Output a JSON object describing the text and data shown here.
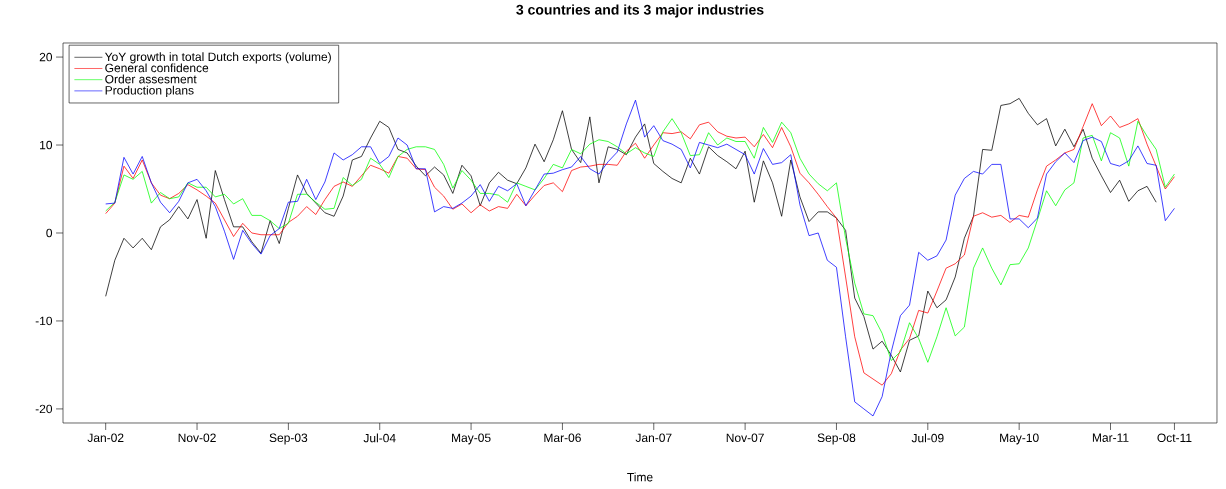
{
  "chart_data": {
    "type": "line",
    "title": "3 countries and its 3 major industries",
    "xlabel": "Time",
    "x": [
      "2002-01",
      "2002-02",
      "2002-03",
      "2002-04",
      "2002-05",
      "2002-06",
      "2002-07",
      "2002-08",
      "2002-09",
      "2002-10",
      "2002-11",
      "2002-12",
      "2003-01",
      "2003-02",
      "2003-03",
      "2003-04",
      "2003-05",
      "2003-06",
      "2003-07",
      "2003-08",
      "2003-09",
      "2003-10",
      "2003-11",
      "2003-12",
      "2004-01",
      "2004-02",
      "2004-03",
      "2004-04",
      "2004-05",
      "2004-06",
      "2004-07",
      "2004-08",
      "2004-09",
      "2004-10",
      "2004-11",
      "2004-12",
      "2005-01",
      "2005-02",
      "2005-03",
      "2005-04",
      "2005-05",
      "2005-06",
      "2005-07",
      "2005-08",
      "2005-09",
      "2005-10",
      "2005-11",
      "2005-12",
      "2006-01",
      "2006-02",
      "2006-03",
      "2006-04",
      "2006-05",
      "2006-06",
      "2006-07",
      "2006-08",
      "2006-09",
      "2006-10",
      "2006-11",
      "2006-12",
      "2007-01",
      "2007-02",
      "2007-03",
      "2007-04",
      "2007-05",
      "2007-06",
      "2007-07",
      "2007-08",
      "2007-09",
      "2007-10",
      "2007-11",
      "2007-12",
      "2008-01",
      "2008-02",
      "2008-03",
      "2008-04",
      "2008-05",
      "2008-06",
      "2008-07",
      "2008-08",
      "2008-09",
      "2008-10",
      "2008-11",
      "2008-12",
      "2009-01",
      "2009-02",
      "2009-03",
      "2009-04",
      "2009-05",
      "2009-06",
      "2009-07",
      "2009-08",
      "2009-09",
      "2009-10",
      "2009-11",
      "2009-12",
      "2010-01",
      "2010-02",
      "2010-03",
      "2010-04",
      "2010-05",
      "2010-06",
      "2010-07",
      "2010-08",
      "2010-09",
      "2010-10",
      "2010-11",
      "2010-12",
      "2011-01",
      "2011-02",
      "2011-03",
      "2011-04",
      "2011-05",
      "2011-06",
      "2011-07",
      "2011-08",
      "2011-09",
      "2011-10"
    ],
    "series": [
      {
        "name": "YoY growth in total Dutch exports (volume)",
        "color": "#000000",
        "values": [
          -7.2,
          -3.1,
          -0.6,
          -1.7,
          -0.6,
          -1.9,
          0.7,
          1.5,
          3.0,
          1.6,
          3.8,
          -0.6,
          7.1,
          3.8,
          0.7,
          0.7,
          -1.0,
          -2.3,
          1.4,
          -1.2,
          2.8,
          6.6,
          4.5,
          3.4,
          2.3,
          1.9,
          4.2,
          8.3,
          8.7,
          10.8,
          12.7,
          12.0,
          9.5,
          9.1,
          7.6,
          6.5,
          7.5,
          6.6,
          4.5,
          7.7,
          6.5,
          3.1,
          5.7,
          6.9,
          6.0,
          5.6,
          7.4,
          10.1,
          8.1,
          10.6,
          13.9,
          9.5,
          8.0,
          13.2,
          5.7,
          9.8,
          9.5,
          8.9,
          10.9,
          12.4,
          7.9,
          7.0,
          6.2,
          5.7,
          8.5,
          6.7,
          9.8,
          8.8,
          8.1,
          7.3,
          9.3,
          3.5,
          8.2,
          5.7,
          1.9,
          8.3,
          4.1,
          1.3,
          2.4,
          2.4,
          1.7,
          0.3,
          -7.4,
          -9.5,
          -13.2,
          -12.3,
          -13.9,
          -15.8,
          -12.2,
          -11.7,
          -6.6,
          -8.5,
          -7.6,
          -5.0,
          -0.6,
          1.9,
          9.5,
          9.4,
          14.5,
          14.7,
          15.3,
          13.6,
          12.3,
          13.0,
          9.9,
          11.8,
          9.8,
          11.8,
          8.5,
          6.5,
          4.6,
          6.0,
          3.6,
          4.8,
          5.3,
          3.5,
          null,
          null
        ]
      },
      {
        "name": "General confidence",
        "color": "#ff0000",
        "values": [
          2.2,
          3.4,
          7.6,
          6.2,
          8.3,
          5.7,
          4.3,
          3.9,
          4.5,
          5.5,
          4.9,
          4.2,
          3.4,
          1.5,
          -0.4,
          1.1,
          0,
          -0.2,
          -0.2,
          -0.2,
          1.2,
          1.9,
          3.0,
          2.1,
          3.8,
          5.3,
          5.8,
          5.3,
          6.5,
          7.7,
          7.3,
          6.8,
          8.7,
          8.5,
          7.3,
          7.2,
          5.2,
          4.2,
          2.7,
          3.3,
          2.3,
          3.2,
          2.5,
          3.0,
          2.8,
          4.4,
          3.1,
          4.3,
          5.4,
          5.7,
          4.7,
          7.1,
          7.5,
          7.6,
          7.8,
          7.8,
          7.7,
          9.3,
          10.2,
          8.5,
          10.0,
          11.4,
          11.3,
          11.5,
          10.7,
          12.3,
          12.6,
          11.5,
          11.0,
          10.8,
          10.9,
          9.8,
          11.2,
          9.7,
          12.0,
          9.8,
          6.8,
          5.7,
          4.4,
          3.0,
          1.7,
          -5.0,
          -11.8,
          -15.9,
          -16.6,
          -17.3,
          -16.0,
          -13.3,
          -12.0,
          -8.8,
          -9.1,
          -6.6,
          -4.0,
          -3.5,
          -2.5,
          1.9,
          2.3,
          1.8,
          2.0,
          1.2,
          2.0,
          1.8,
          4.9,
          7.6,
          8.3,
          9.1,
          9.5,
          12.1,
          14.7,
          12.2,
          13.3,
          12.0,
          12.4,
          13.0,
          10.1,
          7.6,
          5.0,
          6.4
        ]
      },
      {
        "name": "Order assesment",
        "color": "#00ff00",
        "values": [
          2.5,
          3.5,
          6.6,
          6.1,
          7.0,
          3.4,
          4.6,
          3.9,
          4.1,
          5.7,
          5.2,
          5.2,
          4.1,
          4.4,
          3.3,
          3.9,
          2.0,
          2.0,
          1.4,
          0.5,
          1.1,
          4.4,
          4.4,
          3.5,
          2.7,
          2.8,
          6.3,
          5.4,
          6.1,
          8.5,
          7.8,
          6.3,
          8.7,
          9.5,
          9.8,
          9.8,
          9.5,
          7.8,
          5.1,
          7.1,
          6.0,
          4.5,
          4.5,
          4.3,
          3.5,
          5.7,
          5.3,
          4.9,
          6.2,
          7.8,
          7.4,
          9.5,
          9.0,
          10.1,
          10.6,
          10.4,
          9.8,
          9.0,
          9.7,
          9.1,
          8.7,
          11.5,
          13.0,
          11.4,
          8.8,
          8.9,
          11.4,
          10.0,
          10.8,
          10.4,
          10.4,
          8.5,
          12.0,
          10.3,
          12.6,
          11.4,
          8.5,
          6.7,
          5.6,
          4.8,
          5.7,
          -0.6,
          -5.7,
          -9.2,
          -9.4,
          -11.4,
          -14.5,
          -13.5,
          -10.2,
          -12.0,
          -14.7,
          -11.8,
          -8.5,
          -11.7,
          -10.7,
          -4.0,
          -1.7,
          -4.0,
          -5.9,
          -3.6,
          -3.5,
          -1.7,
          1.5,
          4.8,
          3.1,
          4.9,
          5.7,
          10.8,
          11.1,
          8.2,
          11.4,
          10.8,
          7.6,
          12.7,
          11.0,
          9.5,
          5.2,
          6.7
        ]
      },
      {
        "name": "Production plans",
        "color": "#0000ff",
        "values": [
          3.3,
          3.4,
          8.6,
          6.7,
          8.7,
          5.7,
          3.5,
          2.3,
          3.6,
          5.7,
          6.1,
          4.8,
          3.0,
          0.2,
          -3.0,
          0.3,
          -1.2,
          -2.4,
          -0.3,
          0.5,
          3.5,
          3.6,
          6.1,
          3.8,
          5.8,
          9.1,
          8.3,
          8.9,
          9.8,
          9.8,
          7.9,
          8.7,
          10.8,
          10.0,
          7.3,
          7.3,
          2.4,
          3.0,
          2.8,
          3.4,
          4.2,
          5.5,
          3.6,
          5.3,
          4.8,
          5.6,
          3.1,
          4.9,
          6.7,
          6.8,
          7.2,
          7.5,
          8.7,
          7.3,
          6.7,
          8.1,
          9.2,
          12.4,
          15.1,
          10.9,
          12.2,
          10.5,
          10.1,
          9.5,
          7.4,
          10.3,
          10.0,
          9.7,
          10.1,
          9.5,
          8.9,
          6.7,
          9.6,
          7.8,
          8.0,
          8.9,
          3.2,
          -0.3,
          0.0,
          -3.1,
          -3.9,
          -11.8,
          -19.2,
          -20.0,
          -20.8,
          -18.6,
          -13.5,
          -9.4,
          -8.2,
          -2.2,
          -3.1,
          -2.6,
          -0.8,
          4.3,
          6.2,
          7.0,
          6.7,
          7.8,
          7.8,
          1.6,
          1.6,
          0.6,
          1.7,
          6.7,
          8.1,
          9.1,
          8.0,
          10.5,
          10.9,
          10.4,
          7.9,
          7.6,
          8.2,
          9.9,
          7.9,
          7.7,
          1.4,
          2.8
        ]
      }
    ],
    "xlim": [
      "2001-08-11",
      "2012-02-21"
    ],
    "xticks": [
      {
        "value": "2002-01",
        "label": "Jan-02"
      },
      {
        "value": "2002-11",
        "label": "Nov-02"
      },
      {
        "value": "2003-09",
        "label": "Sep-03"
      },
      {
        "value": "2004-07",
        "label": "Jul-04"
      },
      {
        "value": "2005-05",
        "label": "May-05"
      },
      {
        "value": "2006-03",
        "label": "Mar-06"
      },
      {
        "value": "2007-01",
        "label": "Jan-07"
      },
      {
        "value": "2007-11",
        "label": "Nov-07"
      },
      {
        "value": "2008-09",
        "label": "Sep-08"
      },
      {
        "value": "2009-07",
        "label": "Jul-09"
      },
      {
        "value": "2010-05",
        "label": "May-10"
      },
      {
        "value": "2011-03",
        "label": "Mar-11"
      },
      {
        "value": "2011-10",
        "label": "Oct-11"
      }
    ],
    "ylim": [
      -21.6,
      21.6
    ],
    "yticks": [
      -20,
      -10,
      0,
      10,
      20
    ],
    "legend": "top left",
    "marker": "none",
    "line_style": "solid"
  }
}
